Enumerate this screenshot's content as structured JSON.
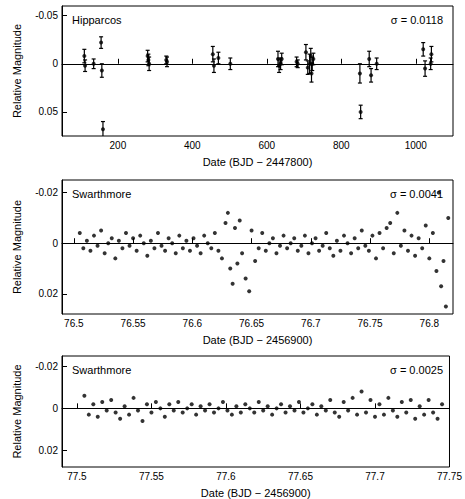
{
  "chart_data": [
    {
      "type": "scatter",
      "annotations": [
        "Hipparcos",
        "σ = 0.0118"
      ],
      "x_label": "Date (BJD − 2447800)",
      "y_label": "Relative Magnitude",
      "color": "#000000",
      "marker": "circle",
      "reference_line": 0,
      "xlim": [
        50,
        1100
      ],
      "xticks": [
        200,
        400,
        600,
        800,
        1000
      ],
      "ylim": [
        0.075,
        -0.06
      ],
      "yticks": [
        -0.05,
        0,
        0.05
      ],
      "x": [
        110,
        112,
        135,
        155,
        157,
        160,
        280,
        282,
        284,
        330,
        332,
        455,
        458,
        470,
        502,
        630,
        633,
        637,
        640,
        680,
        683,
        705,
        710,
        715,
        718,
        720,
        722,
        725,
        850,
        852,
        875,
        880,
        895,
        1020,
        1025,
        1040,
        1042
      ],
      "values": [
        -0.008,
        0.002,
        0.0,
        -0.022,
        0.007,
        0.068,
        -0.008,
        -0.004,
        0.0,
        -0.004,
        -0.002,
        -0.01,
        0.002,
        -0.006,
        0.0,
        -0.005,
        0.002,
        0.0,
        -0.005,
        -0.002,
        0.0,
        -0.012,
        0.004,
        0.0,
        -0.008,
        0.01,
        0.0,
        -0.005,
        0.01,
        0.05,
        -0.005,
        0.012,
        0.0,
        -0.015,
        0.005,
        0.0,
        -0.01
      ],
      "errors": [
        0.007,
        0.006,
        0.005,
        0.006,
        0.007,
        0.008,
        0.006,
        0.006,
        0.007,
        0.004,
        0.005,
        0.008,
        0.007,
        0.006,
        0.006,
        0.008,
        0.007,
        0.006,
        0.006,
        0.005,
        0.004,
        0.008,
        0.007,
        0.01,
        0.008,
        0.009,
        0.007,
        0.006,
        0.01,
        0.007,
        0.008,
        0.007,
        0.006,
        0.007,
        0.008,
        0.006,
        0.008
      ]
    },
    {
      "type": "scatter",
      "annotations": [
        "Swarthmore",
        "σ = 0.0041"
      ],
      "x_label": "Date (BJD − 2456900)",
      "y_label": "Relative Magnitude",
      "color": "#000000",
      "marker": "circle",
      "reference_line": 0,
      "xlim": [
        76.49,
        76.82
      ],
      "xticks": [
        76.5,
        76.55,
        76.6,
        76.65,
        76.7,
        76.75,
        76.8
      ],
      "ylim": [
        0.028,
        -0.025
      ],
      "yticks": [
        -0.02,
        0,
        0.02
      ],
      "x": [
        76.505,
        76.508,
        76.511,
        76.514,
        76.517,
        76.52,
        76.523,
        76.526,
        76.529,
        76.532,
        76.535,
        76.538,
        76.541,
        76.544,
        76.547,
        76.55,
        76.553,
        76.556,
        76.559,
        76.562,
        76.565,
        76.568,
        76.571,
        76.574,
        76.577,
        76.58,
        76.583,
        76.586,
        76.589,
        76.592,
        76.595,
        76.598,
        76.601,
        76.604,
        76.607,
        76.61,
        76.613,
        76.616,
        76.619,
        76.622,
        76.625,
        76.628,
        76.63,
        76.632,
        76.634,
        76.636,
        76.638,
        76.64,
        76.642,
        76.645,
        76.648,
        76.65,
        76.653,
        76.656,
        76.659,
        76.662,
        76.665,
        76.668,
        76.671,
        76.674,
        76.677,
        76.68,
        76.683,
        76.686,
        76.689,
        76.692,
        76.695,
        76.698,
        76.701,
        76.704,
        76.707,
        76.71,
        76.713,
        76.716,
        76.719,
        76.722,
        76.725,
        76.728,
        76.731,
        76.734,
        76.737,
        76.74,
        76.743,
        76.746,
        76.749,
        76.752,
        76.755,
        76.758,
        76.761,
        76.764,
        76.767,
        76.77,
        76.773,
        76.776,
        76.779,
        76.782,
        76.785,
        76.788,
        76.791,
        76.794,
        76.797,
        76.8,
        76.803,
        76.806,
        76.808,
        76.81,
        76.812,
        76.814,
        76.816
      ],
      "values": [
        -0.004,
        0.002,
        -0.001,
        0.003,
        -0.003,
        0.001,
        -0.005,
        0.004,
        0.0,
        -0.002,
        0.006,
        -0.001,
        0.002,
        -0.004,
        0.001,
        -0.002,
        0.003,
        -0.003,
        0.0,
        0.005,
        -0.001,
        0.002,
        -0.004,
        0.001,
        0.003,
        -0.002,
        0.0,
        0.004,
        -0.003,
        0.002,
        -0.001,
        0.003,
        -0.002,
        0.001,
        0.004,
        -0.003,
        0.0,
        0.002,
        -0.004,
        0.003,
        0.006,
        -0.008,
        -0.012,
        0.01,
        0.016,
        -0.006,
        0.008,
        -0.009,
        0.004,
        0.014,
        0.019,
        -0.005,
        0.007,
        0.002,
        -0.004,
        0.003,
        0.0,
        -0.002,
        0.004,
        0.001,
        -0.003,
        0.002,
        0.0,
        -0.002,
        0.003,
        0.001,
        -0.003,
        0.004,
        0.0,
        -0.002,
        0.003,
        0.001,
        -0.004,
        0.002,
        0.005,
        -0.001,
        0.003,
        -0.003,
        0.0,
        0.004,
        -0.002,
        0.002,
        -0.005,
        0.001,
        0.003,
        -0.003,
        0.006,
        -0.004,
        0.002,
        -0.006,
        -0.008,
        0.004,
        -0.012,
        0.001,
        -0.005,
        0.003,
        -0.003,
        0.005,
        -0.002,
        0.002,
        -0.007,
        0.006,
        -0.004,
        0.011,
        -0.02,
        0.017,
        0.007,
        0.025,
        -0.01
      ]
    },
    {
      "type": "scatter",
      "annotations": [
        "Swarthmore",
        "σ = 0.0025"
      ],
      "x_label": "Date (BJD − 2456900)",
      "y_label": "Relative Magnitude",
      "color": "#000000",
      "marker": "circle",
      "reference_line": 0,
      "xlim": [
        77.49,
        77.75
      ],
      "xticks": [
        77.5,
        77.55,
        77.6,
        77.65,
        77.7,
        77.75
      ],
      "ylim": [
        0.028,
        -0.025
      ],
      "yticks": [
        -0.02,
        0,
        0.02
      ],
      "x": [
        77.505,
        77.508,
        77.511,
        77.514,
        77.517,
        77.52,
        77.523,
        77.526,
        77.529,
        77.532,
        77.535,
        77.538,
        77.541,
        77.544,
        77.547,
        77.55,
        77.553,
        77.556,
        77.559,
        77.562,
        77.565,
        77.568,
        77.571,
        77.574,
        77.577,
        77.58,
        77.583,
        77.586,
        77.589,
        77.592,
        77.595,
        77.598,
        77.601,
        77.604,
        77.607,
        77.61,
        77.613,
        77.616,
        77.619,
        77.622,
        77.625,
        77.628,
        77.631,
        77.634,
        77.637,
        77.64,
        77.643,
        77.646,
        77.649,
        77.652,
        77.655,
        77.658,
        77.661,
        77.664,
        77.667,
        77.67,
        77.673,
        77.676,
        77.679,
        77.682,
        77.685,
        77.688,
        77.691,
        77.694,
        77.697,
        77.7,
        77.703,
        77.706,
        77.709,
        77.712,
        77.715,
        77.718,
        77.721,
        77.724,
        77.727,
        77.73,
        77.733,
        77.736,
        77.739,
        77.742,
        77.745
      ],
      "values": [
        -0.006,
        0.003,
        -0.002,
        0.004,
        -0.003,
        0.001,
        -0.004,
        0.002,
        0.005,
        -0.001,
        0.003,
        -0.005,
        0.001,
        0.006,
        -0.002,
        0.002,
        -0.003,
        0.0,
        0.004,
        -0.002,
        0.001,
        -0.003,
        0.002,
        0.0,
        -0.002,
        0.003,
        -0.001,
        0.001,
        -0.002,
        0.002,
        0.0,
        -0.003,
        0.001,
        0.003,
        -0.001,
        0.002,
        -0.002,
        0.0,
        0.002,
        -0.003,
        0.001,
        -0.001,
        0.003,
        0.0,
        -0.002,
        0.002,
        -0.001,
        0.001,
        -0.003,
        0.002,
        0.0,
        -0.002,
        0.003,
        -0.001,
        0.001,
        -0.004,
        0.002,
        0.004,
        -0.003,
        0.001,
        -0.005,
        0.003,
        -0.008,
        0.002,
        -0.004,
        0.004,
        -0.002,
        0.003,
        -0.005,
        0.001,
        0.004,
        -0.003,
        0.002,
        -0.004,
        0.005,
        -0.001,
        0.003,
        -0.004,
        0.002,
        0.005,
        -0.002
      ]
    }
  ]
}
